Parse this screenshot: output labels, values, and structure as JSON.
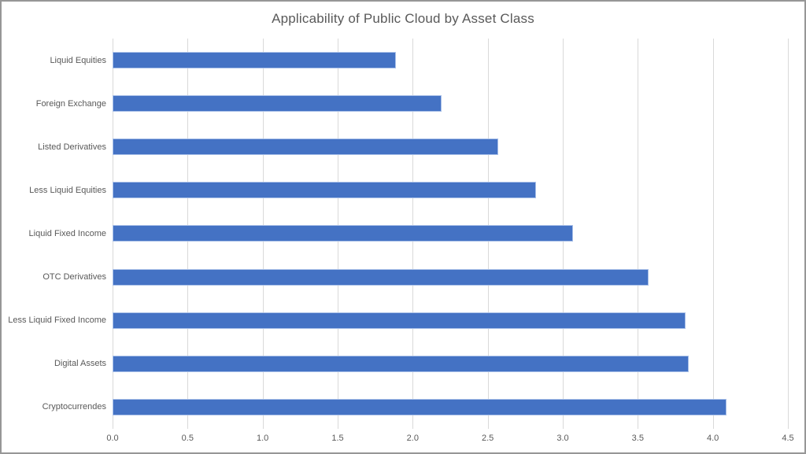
{
  "window": {
    "background_color": "#ffffff",
    "border_color": "#979797"
  },
  "chart_data": {
    "type": "bar",
    "orientation": "horizontal",
    "title": "Applicability of Public Cloud by Asset Class",
    "xlabel": "",
    "ylabel": "",
    "categories": [
      "Liquid Equities",
      "Foreign Exchange",
      "Listed Derivatives",
      "Less Liquid Equities",
      "Liquid Fixed Income",
      "OTC Derivatives",
      "Less Liquid Fixed Income",
      "Digital Assets",
      "Cryptocurrendes"
    ],
    "values": [
      1.89,
      2.19,
      2.57,
      2.82,
      3.07,
      3.57,
      3.82,
      3.84,
      4.09
    ],
    "xlim": [
      0,
      4.5
    ],
    "x_ticks": [
      0.0,
      0.5,
      1.0,
      1.5,
      2.0,
      2.5,
      3.0,
      3.5,
      4.0,
      4.5
    ],
    "x_tick_labels": [
      "0.0",
      "0.5",
      "1.0",
      "1.5",
      "2.0",
      "2.5",
      "3.0",
      "3.5",
      "4.0",
      "4.5"
    ],
    "grid": true,
    "gridline_orientation": "vertical",
    "legend": false,
    "data_labels": false,
    "colors": {
      "bar_fill": "#4472c4",
      "bar_border": "#a9c0e8",
      "gridline": "#d9d9d9",
      "title_text": "#595959",
      "axis_text": "#595959"
    }
  }
}
